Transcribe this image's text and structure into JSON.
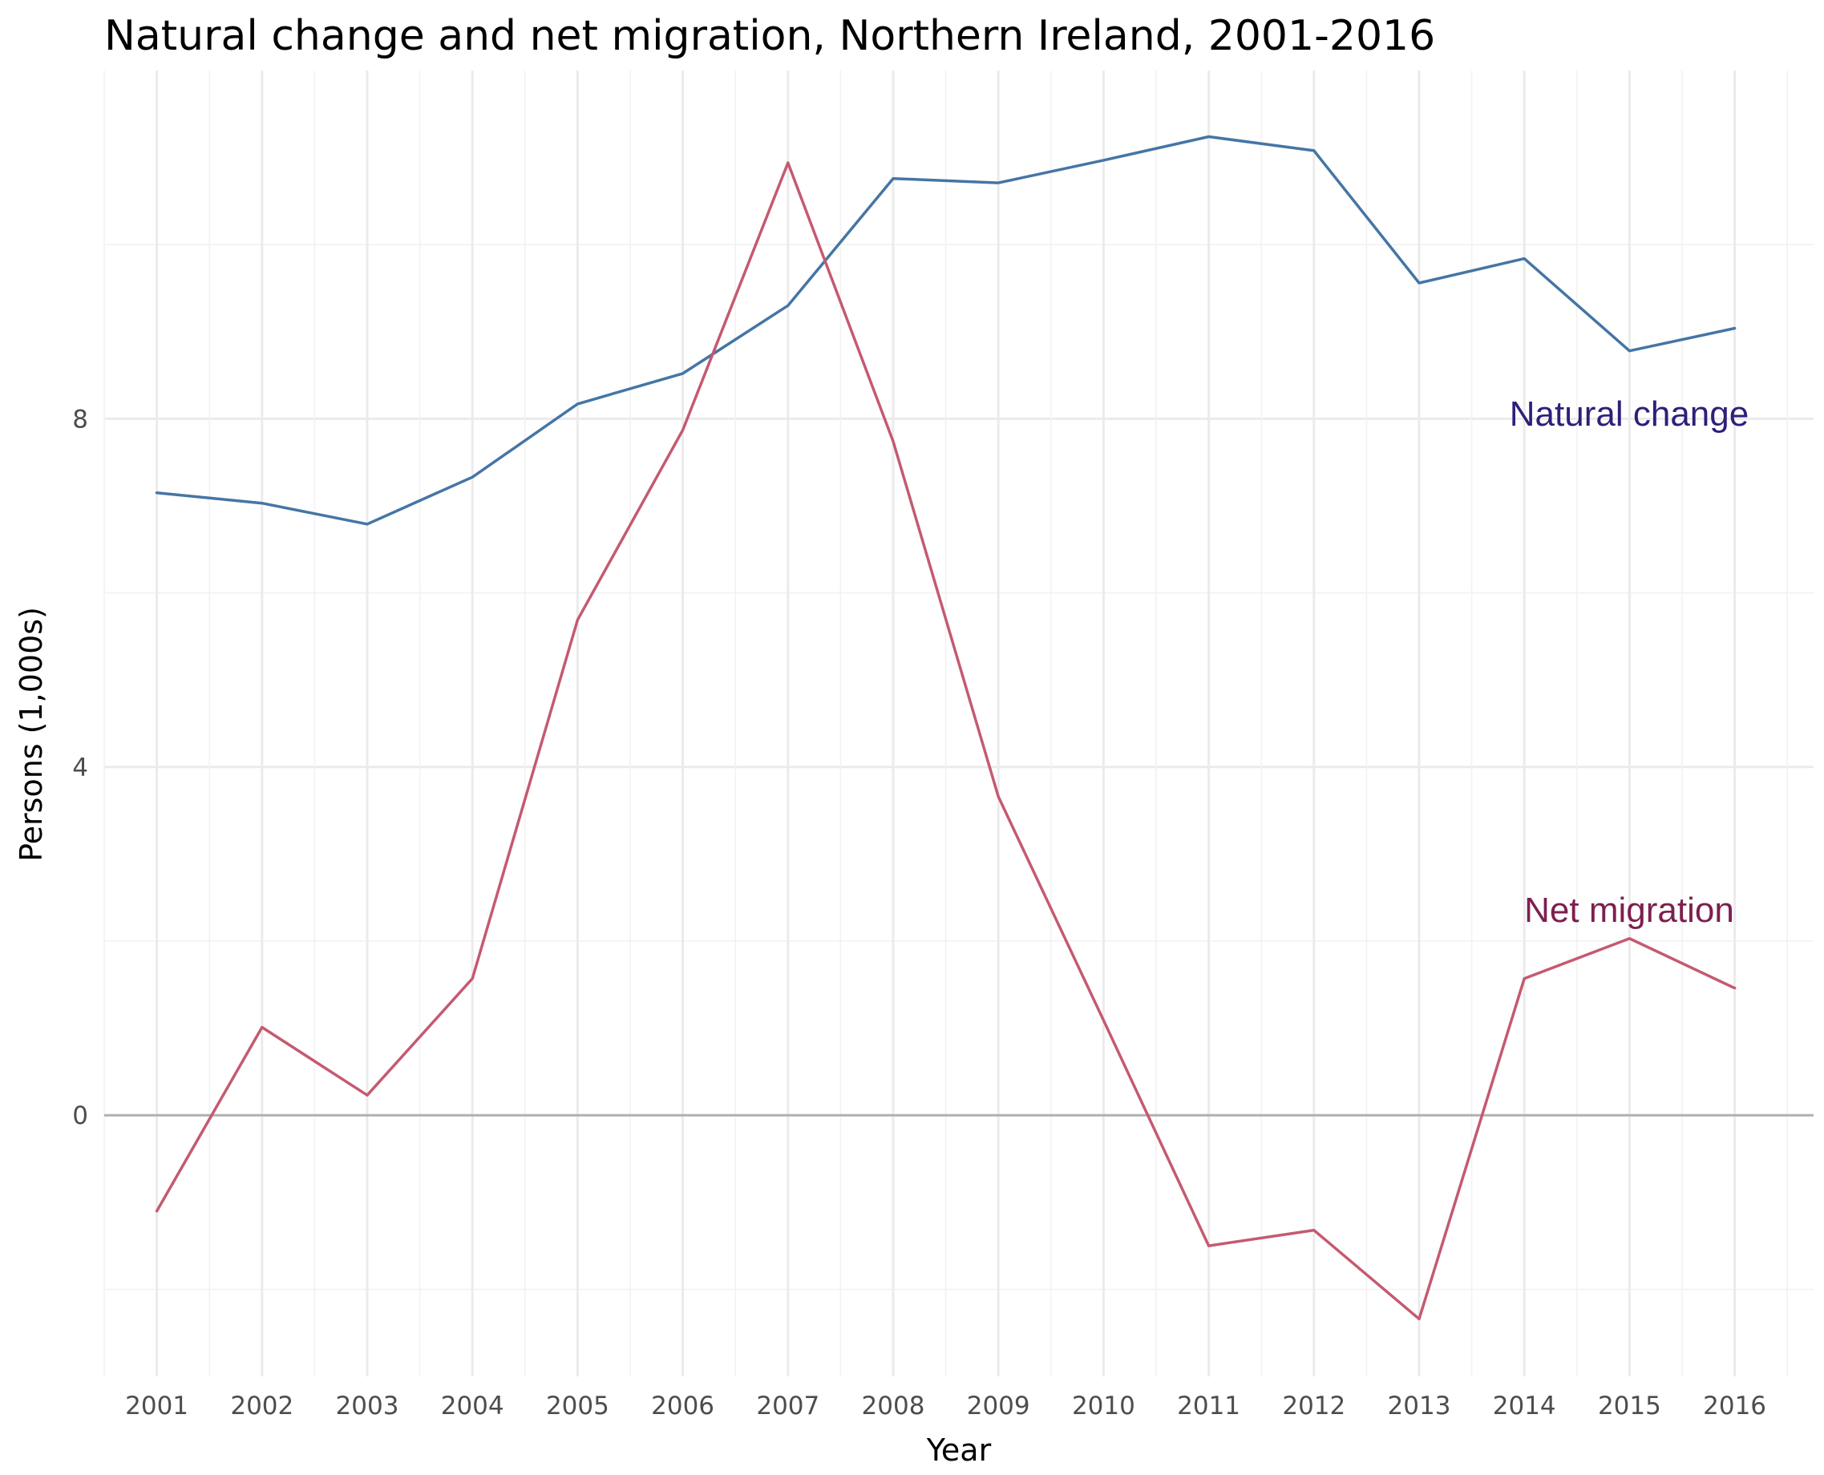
{
  "chart_data": {
    "type": "line",
    "title": "Natural change and net migration, Northern Ireland, 2001-2016",
    "xlabel": "Year",
    "ylabel": "Persons (1,000s)",
    "x": [
      2001,
      2002,
      2003,
      2004,
      2005,
      2006,
      2007,
      2008,
      2009,
      2010,
      2011,
      2012,
      2013,
      2014,
      2015,
      2016
    ],
    "xlim": [
      2000.5,
      2016.75
    ],
    "ylim": [
      -3.0,
      12.0
    ],
    "y_ticks": [
      "0",
      "4",
      "8"
    ],
    "x_ticks": [
      "2001",
      "2002",
      "2003",
      "2004",
      "2005",
      "2006",
      "2007",
      "2008",
      "2009",
      "2010",
      "2011",
      "2012",
      "2013",
      "2014",
      "2015",
      "2016"
    ],
    "grid": true,
    "legend": "none (direct labels)",
    "series": [
      {
        "name": "Natural change",
        "color": "#4575a5",
        "label_color": "#2e1f7a",
        "values": [
          7.15,
          7.03,
          6.79,
          7.33,
          8.17,
          8.52,
          9.3,
          10.76,
          10.71,
          10.97,
          11.24,
          11.08,
          9.56,
          9.84,
          8.78,
          9.04
        ]
      },
      {
        "name": "Net migration",
        "color": "#c45a70",
        "label_color": "#7d1f4f",
        "values": [
          -1.1,
          1.01,
          0.23,
          1.57,
          5.69,
          7.87,
          10.94,
          7.74,
          3.66,
          1.09,
          -1.5,
          -1.32,
          -2.34,
          1.57,
          2.03,
          1.46
        ]
      }
    ]
  }
}
